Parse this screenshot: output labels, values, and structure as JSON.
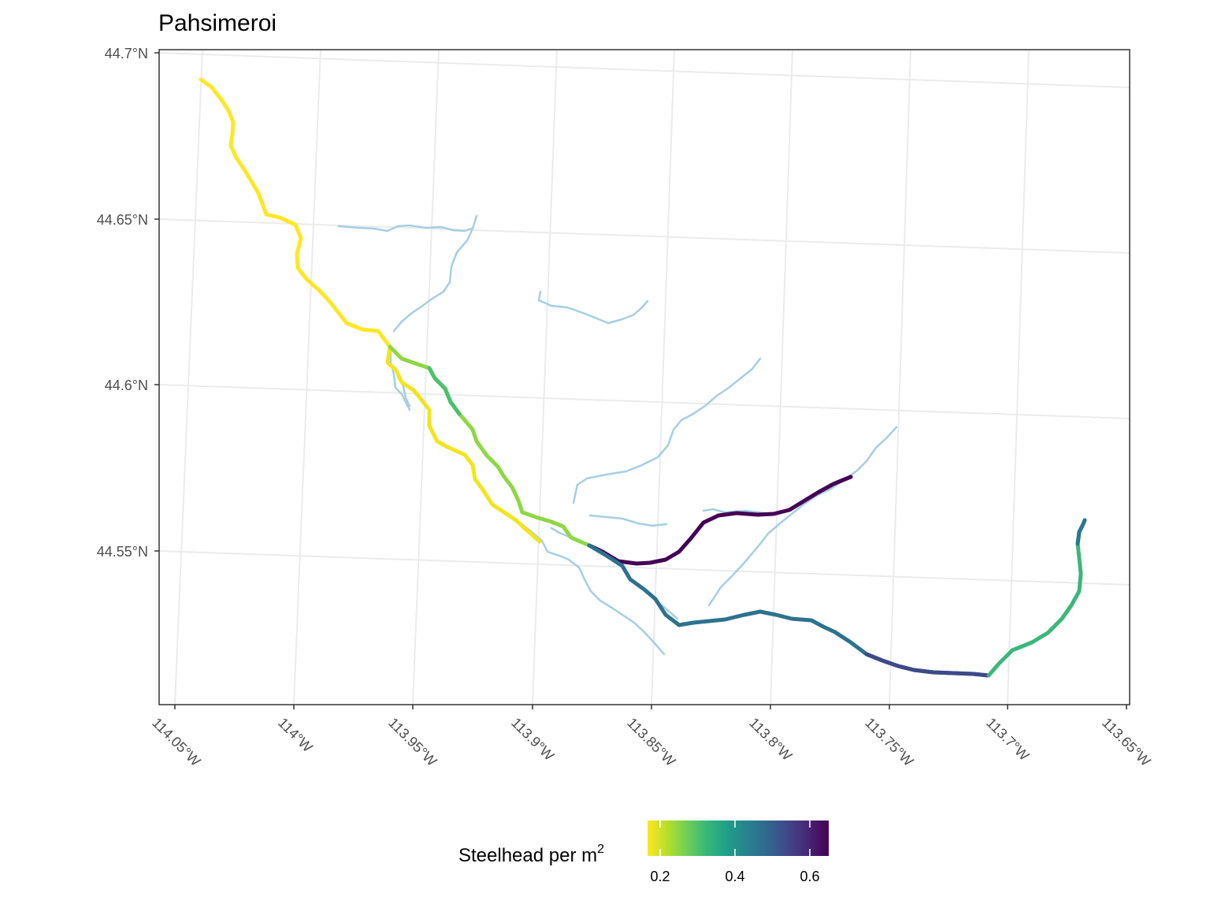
{
  "map": {
    "title": "Pahsimeroi",
    "lat_ticks": [
      "44.7°N",
      "44.65°N",
      "44.6°N",
      "44.55°N"
    ],
    "lon_ticks": [
      "114.05°W",
      "114°W",
      "113.95°W",
      "113.9°W",
      "113.85°W",
      "113.8°W",
      "113.75°W",
      "113.7°W",
      "113.65°W"
    ],
    "colors": {
      "panel_border": "#333333",
      "grid": "#ebebeb",
      "stream_background": "#a6cee3"
    },
    "legend": {
      "title": "Steelhead per m",
      "title_superscript": "2",
      "ticks": [
        "0.2",
        "0.4",
        "0.6"
      ],
      "scale": "viridis (reversed)",
      "colors": [
        "#fde725",
        "#b5de2b",
        "#6ece58",
        "#35b779",
        "#1f9e89",
        "#26828e",
        "#31688e",
        "#3e4989",
        "#482878",
        "#440154"
      ]
    }
  }
}
